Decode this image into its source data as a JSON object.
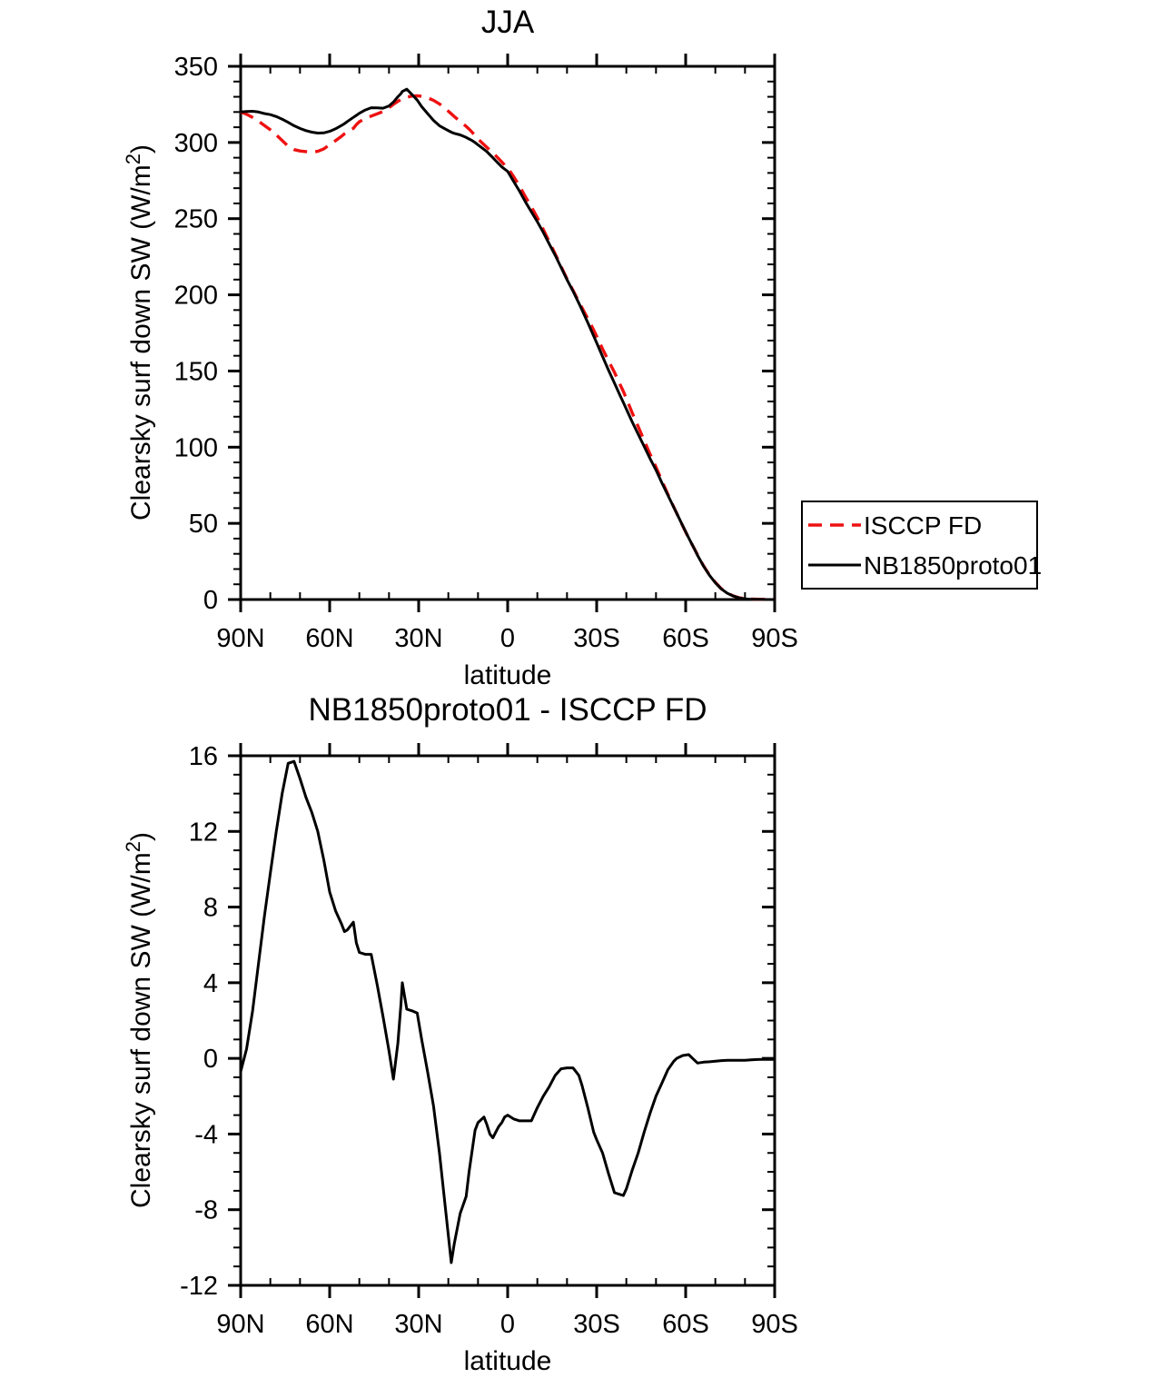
{
  "figure": {
    "background": "#ffffff",
    "text_color": "#000000",
    "accent_red": "#ee1111",
    "line_black": "#000000"
  },
  "top_panel": {
    "title": "JJA",
    "xlabel": "latitude",
    "ylabel_prefix": "Clearsky surf down SW (W/m",
    "ylabel_sup": "2",
    "ylabel_suffix": ")"
  },
  "bottom_panel": {
    "title": "NB1850proto01 - ISCCP FD",
    "xlabel": "latitude",
    "ylabel_prefix": "Clearsky surf down SW (W/m",
    "ylabel_sup": "2",
    "ylabel_suffix": ")"
  },
  "legend": {
    "entries": [
      {
        "label": "ISCCP FD",
        "color": "#ee1111",
        "style": "dashed"
      },
      {
        "label": "NB1850proto01",
        "color": "#000000",
        "style": "solid"
      }
    ]
  },
  "chart_data": [
    {
      "type": "line",
      "title": "JJA",
      "xlabel": "latitude",
      "ylabel": "Clearsky surf down SW (W/m2)",
      "x_units": "degrees latitude, positive = North",
      "xlim": [
        90,
        -90
      ],
      "ylim": [
        0,
        350
      ],
      "ytick_step": 50,
      "ytick_minor_step": 10,
      "xtick_minor_step": 10,
      "grid": false,
      "legend_position": "outside right, lower third",
      "xtick_values": [
        90,
        60,
        30,
        0,
        -30,
        -60,
        -90
      ],
      "xtick_labels": [
        "90N",
        "60N",
        "30N",
        "0",
        "30S",
        "60S",
        "90S"
      ],
      "ytick_labels": [
        "0",
        "50",
        "100",
        "150",
        "200",
        "250",
        "300",
        "350"
      ],
      "x": [
        90,
        88,
        86,
        84,
        82,
        80,
        78,
        76,
        74,
        72,
        70,
        68,
        66,
        64,
        62,
        60,
        58,
        56,
        55,
        54,
        52,
        51,
        50,
        48,
        46,
        44,
        42,
        40,
        38.5,
        37,
        36,
        35.5,
        34,
        32,
        30.5,
        29,
        27,
        25,
        23,
        21,
        19,
        18,
        16,
        14,
        13,
        12,
        11,
        10,
        8,
        7,
        6,
        5,
        4,
        3,
        2,
        1,
        0,
        -2,
        -4,
        -6,
        -8,
        -10,
        -12,
        -14,
        -16,
        -18,
        -20,
        -22,
        -24,
        -25,
        -27,
        -29,
        -30,
        -32,
        -34,
        -36,
        -38,
        -39,
        -40,
        -42,
        -44,
        -46,
        -48,
        -50,
        -52,
        -54,
        -56,
        -57,
        -59,
        -61,
        -63,
        -64,
        -66,
        -68,
        -70,
        -72,
        -74,
        -76,
        -78,
        -80,
        -82,
        -84,
        -86,
        -88,
        -90
      ],
      "series": [
        {
          "name": "ISCCP FD",
          "color": "#ee1111",
          "style": "dashed",
          "values": [
            320,
            318.5,
            316.5,
            314,
            311.2,
            308.3,
            305,
            301.3,
            297.6,
            295.3,
            294.4,
            294,
            293.8,
            294.2,
            295.8,
            298.5,
            301.2,
            304.1,
            305.7,
            307,
            309.3,
            311.7,
            313.6,
            315.8,
            317.3,
            318.8,
            320.3,
            322.8,
            325,
            327,
            328.2,
            328.7,
            329.8,
            330.5,
            330.6,
            330.3,
            329.3,
            327.7,
            325.3,
            322.3,
            318.8,
            317,
            313.8,
            310.6,
            308.8,
            306.8,
            304.5,
            302.3,
            298.6,
            296.8,
            295,
            293.2,
            291.3,
            289.3,
            287.2,
            285.2,
            283.4,
            277.7,
            271.3,
            264.3,
            257.8,
            250.6,
            243,
            235,
            226.9,
            218.6,
            210.5,
            203,
            195.4,
            191.7,
            184.4,
            176.9,
            172.8,
            164.5,
            156.6,
            149.1,
            140.7,
            136.6,
            131.9,
            122.4,
            113.5,
            104.4,
            95.4,
            87,
            77.8,
            69.1,
            60.7,
            56.5,
            48.4,
            40.3,
            33.1,
            29.3,
            22.2,
            16.2,
            11.2,
            7.1,
            4.3,
            2.4,
            1.2,
            0.6,
            0.3,
            0.2,
            0.1,
            0.05,
            0.05
          ]
        },
        {
          "name": "NB1850proto01",
          "color": "#000000",
          "style": "solid",
          "values": [
            320,
            320.3,
            320.5,
            320,
            319,
            318.3,
            317,
            315.3,
            313.2,
            311,
            309.2,
            307.8,
            306.8,
            306.2,
            306.3,
            307.3,
            309,
            311.2,
            312.4,
            313.8,
            316.5,
            317.8,
            319.2,
            321.3,
            322.8,
            322.7,
            322.5,
            324,
            326.5,
            330,
            332,
            333.5,
            335,
            331,
            327.8,
            323.5,
            319,
            314.5,
            311,
            308.8,
            306.8,
            306,
            305,
            303.3,
            302.3,
            301.3,
            300,
            298.5,
            295.5,
            294,
            292,
            290,
            288,
            286,
            284,
            282.5,
            281,
            274.5,
            268,
            261,
            254.5,
            248,
            241,
            233.5,
            226,
            218,
            210,
            202.5,
            194.5,
            190.3,
            181.8,
            173,
            168.5,
            159.5,
            150.5,
            142,
            133.5,
            129.3,
            125,
            116.5,
            108.5,
            100.5,
            92.5,
            85,
            76.5,
            68.5,
            60.5,
            56.5,
            48.5,
            40.5,
            33,
            29,
            22,
            16,
            11,
            7,
            4.2,
            2.3,
            1.1,
            0.5,
            0.2,
            0.1,
            0.05,
            0,
            0
          ]
        }
      ]
    },
    {
      "type": "line",
      "title": "NB1850proto01 - ISCCP FD",
      "xlabel": "latitude",
      "ylabel": "Clearsky surf down SW (W/m2)",
      "x_units": "degrees latitude, positive = North",
      "xlim": [
        90,
        -90
      ],
      "ylim": [
        -12,
        16
      ],
      "ytick_step": 4,
      "ytick_minor_step": 1,
      "xtick_minor_step": 10,
      "grid": false,
      "legend_position": "none",
      "xtick_values": [
        90,
        60,
        30,
        0,
        -30,
        -60,
        -90
      ],
      "xtick_labels": [
        "90N",
        "60N",
        "30N",
        "0",
        "30S",
        "60S",
        "90S"
      ],
      "ytick_labels": [
        "-12",
        "-8",
        "-4",
        "0",
        "4",
        "8",
        "12",
        "16"
      ],
      "x": [
        90,
        88,
        86,
        84,
        82,
        80,
        78,
        76,
        74,
        72,
        70,
        68,
        66,
        64,
        62,
        60,
        58,
        56,
        55,
        54,
        52,
        51,
        50,
        48,
        46,
        44,
        42,
        40,
        38.5,
        37,
        36,
        35.5,
        34,
        32,
        30.5,
        29,
        27,
        25,
        23,
        21,
        19,
        18,
        16,
        14,
        13,
        12,
        11,
        10,
        8,
        7,
        6,
        5,
        4,
        3,
        2,
        1,
        0,
        -2,
        -4,
        -6,
        -8,
        -10,
        -12,
        -14,
        -16,
        -18,
        -20,
        -22,
        -24,
        -25,
        -27,
        -29,
        -30,
        -32,
        -34,
        -36,
        -38,
        -39,
        -40,
        -42,
        -44,
        -46,
        -48,
        -50,
        -52,
        -54,
        -56,
        -57,
        -59,
        -61,
        -63,
        -64,
        -66,
        -68,
        -70,
        -72,
        -74,
        -76,
        -78,
        -80,
        -82,
        -84,
        -86,
        -88,
        -90
      ],
      "series": [
        {
          "name": "NB1850proto01 - ISCCP FD",
          "color": "#000000",
          "style": "solid",
          "values": [
            -0.7,
            0.5,
            2.5,
            5,
            7.5,
            9.8,
            12,
            14,
            15.6,
            15.7,
            14.8,
            13.8,
            13,
            12,
            10.5,
            8.8,
            7.8,
            7.1,
            6.7,
            6.8,
            7.2,
            6.1,
            5.6,
            5.5,
            5.5,
            3.9,
            2.2,
            0.4,
            -1.1,
            0.8,
            2.8,
            4,
            2.6,
            2.5,
            2.4,
            1,
            -0.7,
            -2.5,
            -5,
            -7.9,
            -10.8,
            -9.8,
            -8.2,
            -7.3,
            -6,
            -4.9,
            -3.8,
            -3.4,
            -3.1,
            -3.5,
            -4,
            -4.2,
            -3.9,
            -3.6,
            -3.4,
            -3.1,
            -3,
            -3.2,
            -3.3,
            -3.3,
            -3.3,
            -2.6,
            -2,
            -1.5,
            -0.9,
            -0.55,
            -0.5,
            -0.5,
            -0.9,
            -1.4,
            -2.6,
            -3.9,
            -4.3,
            -5,
            -6.1,
            -7.1,
            -7.2,
            -7.25,
            -6.9,
            -5.9,
            -5,
            -3.9,
            -2.9,
            -2,
            -1.3,
            -0.6,
            -0.15,
            0,
            0.15,
            0.2,
            -0.1,
            -0.25,
            -0.2,
            -0.18,
            -0.15,
            -0.12,
            -0.1,
            -0.1,
            -0.1,
            -0.1,
            -0.08,
            -0.06,
            -0.05,
            -0.05,
            -0.05
          ]
        }
      ]
    }
  ]
}
